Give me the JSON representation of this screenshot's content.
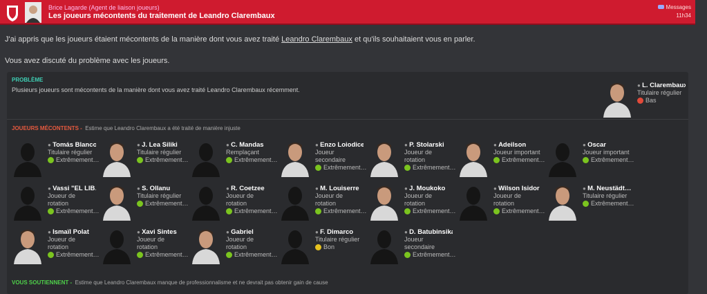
{
  "header": {
    "sender": "Brice Lagarde  (Agent de liaison joueurs)",
    "subject": "Les joueurs mécontents du traitement de Leandro Clarembaux",
    "inbox": "Messages",
    "time": "11h34"
  },
  "body": {
    "intro": {
      "before": "J'ai appris que les joueurs étaient mécontents de la manière dont vous avez traité",
      "link": "Leandro Clarembaux",
      "after": "et qu'ils souhaitaient vous en parler."
    },
    "discussed": "Vous avez discuté du problème avec les joueurs."
  },
  "problem": {
    "label": "PROBLÈME",
    "text": "Plusieurs joueurs sont mécontents de la manière dont vous avez traité Leandro Clarembaux récemment.",
    "player": {
      "name": "L. Clarembaux",
      "role": "Titulaire régulier",
      "status": "Bas"
    }
  },
  "unhappy": {
    "label": "JOUEURS MÉCONTENTS -",
    "text": "Estime que Leandro Clarembaux a été traité de manière injuste",
    "players": [
      {
        "name": "Tomás Blanco",
        "role": "Titulaire régulier",
        "status": "Extrêmement…"
      },
      {
        "name": "J. Lea Siliki",
        "role": "Titulaire régulier",
        "status": "Extrêmement…"
      },
      {
        "name": "C. Mandas",
        "role": "Remplaçant",
        "status": "Extrêmement…"
      },
      {
        "name": "Enzo Loiodice",
        "role": "Joueur secondaire",
        "status": "Extrêmement…"
      },
      {
        "name": "P. Stolarski",
        "role": "Joueur de rotation",
        "status": "Extrêmement…"
      },
      {
        "name": "Adeilson",
        "role": "Joueur important",
        "status": "Extrêmement…"
      },
      {
        "name": "Oscar",
        "role": "Joueur important",
        "status": "Extrêmement…"
      },
      {
        "name": "Vassi \"EL LIB…",
        "role": "Joueur de rotation",
        "status": "Extrêmement…"
      },
      {
        "name": "S. Ollanu",
        "role": "Titulaire régulier",
        "status": "Extrêmement…"
      },
      {
        "name": "R. Coetzee",
        "role": "Joueur de rotation",
        "status": "Extrêmement…"
      },
      {
        "name": "M. Louiserre",
        "role": "Joueur de rotation",
        "status": "Extrêmement…"
      },
      {
        "name": "J. Moukoko",
        "role": "Joueur de rotation",
        "status": "Extrêmement…"
      },
      {
        "name": "Wilson Isidor",
        "role": "Joueur de rotation",
        "status": "Extrêmement…"
      },
      {
        "name": "M. Neustädt…",
        "role": "Titulaire régulier",
        "status": "Extrêmement…"
      },
      {
        "name": "Ismaïl Polat",
        "role": "Joueur de rotation",
        "status": "Extrêmement…"
      },
      {
        "name": "Xavi Sintes",
        "role": "Joueur de rotation",
        "status": "Extrêmement…"
      },
      {
        "name": "Gabriel",
        "role": "Joueur de rotation",
        "status": "Extrêmement…"
      },
      {
        "name": "F. Dimarco",
        "role": "Titulaire régulier",
        "status": "Bon"
      },
      {
        "name": "D. Batubinsika",
        "role": "Joueur secondaire",
        "status": "Extrêmement…"
      }
    ]
  },
  "support": {
    "label": "VOUS SOUTIENNENT -",
    "text": "Estime que Leandro Clarembaux manque de professionnalisme et ne devrait pas obtenir gain de cause"
  }
}
